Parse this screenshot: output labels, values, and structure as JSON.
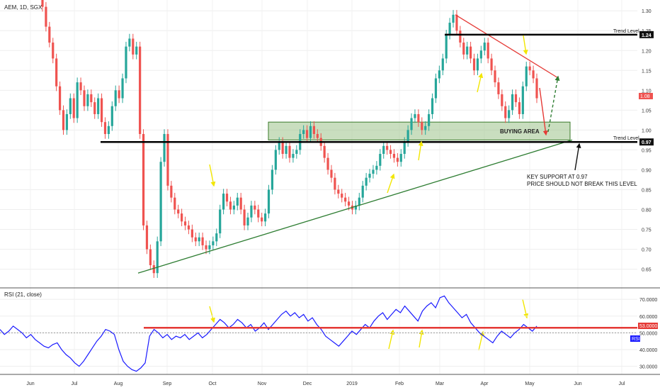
{
  "chart_data": [
    {
      "type": "candlestick",
      "title": "AEM, 1D, SGX",
      "y_axis_ticks": [
        "1.30",
        "1.25",
        "1.20",
        "1.15",
        "1.10",
        "1.05",
        "1.00",
        "0.95",
        "0.90",
        "0.85",
        "0.80",
        "0.75",
        "0.70",
        "0.65"
      ],
      "ylim": [
        0.61,
        1.32
      ],
      "x_axis_ticks": [
        "Jun",
        "Jul",
        "Aug",
        "Sep",
        "Oct",
        "Nov",
        "Dec",
        "2019",
        "Feb",
        "Mar",
        "Apr",
        "May",
        "Jun",
        "Jul"
      ],
      "last_price": "1.08",
      "levels": [
        {
          "label": "Trend Level",
          "value": "1.24",
          "color": "#000000"
        },
        {
          "label": "Trend Level",
          "value": "0.97",
          "color": "#000000"
        }
      ],
      "zone": {
        "label": "BUYING AREA",
        "from": 0.975,
        "to": 1.02,
        "color": "#4e8a2f"
      },
      "annotations": [
        {
          "text": "KEY SUPPORT AT 0.97"
        },
        {
          "text": "PRICE SHOULD NOT BREAK THIS LEVEL"
        }
      ],
      "trendlines": [
        {
          "name": "support",
          "color": "#2e7d32",
          "from": [
            "Aug",
            0.64
          ],
          "to": [
            "Jun",
            0.975
          ]
        },
        {
          "name": "resistance",
          "color": "#e53935",
          "from": [
            "Mar",
            1.29
          ],
          "to": [
            "May",
            1.13
          ]
        }
      ],
      "series": [
        {
          "name": "price",
          "up_color": "#26a69a",
          "down_color": "#ef5350",
          "values": [
            1.31,
            1.26,
            1.22,
            1.18,
            1.11,
            1.05,
            1.0,
            1.04,
            1.08,
            1.03,
            1.12,
            1.1,
            1.06,
            1.09,
            1.07,
            1.04,
            1.08,
            1.02,
            0.99,
            1.01,
            1.06,
            1.1,
            1.08,
            1.13,
            1.21,
            1.23,
            1.19,
            1.21,
            0.99,
            0.76,
            0.7,
            0.66,
            0.64,
            0.72,
            0.92,
            0.99,
            0.86,
            0.83,
            0.8,
            0.79,
            0.77,
            0.76,
            0.75,
            0.73,
            0.72,
            0.73,
            0.71,
            0.7,
            0.71,
            0.72,
            0.74,
            0.8,
            0.84,
            0.82,
            0.8,
            0.81,
            0.83,
            0.8,
            0.76,
            0.78,
            0.81,
            0.8,
            0.78,
            0.77,
            0.79,
            0.85,
            0.9,
            0.95,
            0.97,
            0.94,
            0.96,
            0.93,
            0.94,
            0.95,
            0.99,
            1.0,
            0.98,
            1.01,
            0.99,
            0.98,
            0.96,
            0.93,
            0.9,
            0.88,
            0.85,
            0.84,
            0.83,
            0.82,
            0.81,
            0.8,
            0.81,
            0.83,
            0.86,
            0.88,
            0.89,
            0.9,
            0.91,
            0.94,
            0.96,
            0.95,
            0.94,
            0.93,
            0.92,
            0.94,
            0.97,
            1.0,
            1.03,
            1.04,
            1.02,
            1.0,
            1.01,
            1.04,
            1.08,
            1.13,
            1.15,
            1.18,
            1.24,
            1.27,
            1.29,
            1.25,
            1.22,
            1.19,
            1.21,
            1.18,
            1.15,
            1.18,
            1.2,
            1.22,
            1.18,
            1.15,
            1.12,
            1.09,
            1.06,
            1.03,
            1.05,
            1.09,
            1.07,
            1.04,
            1.11,
            1.16,
            1.15,
            1.13,
            1.08
          ]
        }
      ]
    },
    {
      "type": "line",
      "title": "RSI (21, close)",
      "y_axis_ticks": [
        "70.0000",
        "60.0000",
        "50.0000",
        "40.0000",
        "30.0000"
      ],
      "ylim": [
        26,
        76
      ],
      "level": {
        "value": "53.0000",
        "color": "#e53935"
      },
      "midline": 50,
      "badge": "RSI",
      "series": [
        {
          "name": "RSI",
          "color": "#1a1aff",
          "values": [
            52,
            49,
            51,
            54,
            52,
            50,
            47,
            49,
            46,
            44,
            42,
            41,
            43,
            44,
            40,
            37,
            35,
            32,
            30,
            33,
            37,
            41,
            45,
            48,
            52,
            51,
            49,
            40,
            33,
            30,
            28,
            27,
            29,
            32,
            48,
            52,
            50,
            47,
            49,
            46,
            48,
            47,
            49,
            46,
            48,
            50,
            47,
            49,
            52,
            55,
            58,
            56,
            53,
            55,
            58,
            56,
            53,
            55,
            51,
            53,
            56,
            52,
            55,
            58,
            61,
            63,
            60,
            62,
            59,
            61,
            57,
            59,
            55,
            52,
            48,
            46,
            44,
            42,
            45,
            48,
            51,
            49,
            52,
            55,
            53,
            57,
            60,
            62,
            58,
            61,
            64,
            62,
            66,
            63,
            60,
            57,
            63,
            66,
            68,
            65,
            71,
            72,
            68,
            65,
            62,
            59,
            61,
            56,
            53,
            50,
            48,
            46,
            44,
            48,
            51,
            49,
            47,
            50,
            52,
            55,
            53,
            51,
            54
          ]
        }
      ]
    }
  ]
}
